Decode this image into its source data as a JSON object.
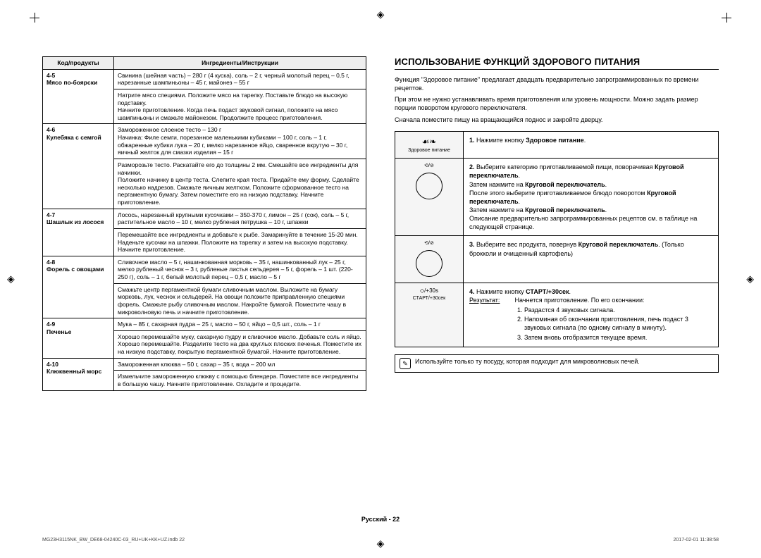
{
  "left": {
    "col1_header": "Код/продукты",
    "col2_header": "Ингредиенты/Инструкции",
    "rows": [
      {
        "code": "4-5\nМясо по-боярски",
        "ing": "Свинина (шейная часть) – 280 г (4 куска), соль – 2 г, черный молотый перец – 0,5 г, нарезанные шампиньоны – 45 г, майонез – 55 г",
        "instr": "Натрите мясо специями. Положите мясо на тарелку. Поставьте блюдо на высокую подставку.\nНачните приготовление. Когда печь подаст звуковой сигнал, положите на мясо шампиньоны и смажьте майонезом. Продолжите процесс приготовления."
      },
      {
        "code": "4-6\nКулебяка с семгой",
        "ing": "Замороженное слоеное тесто – 130 г\nНачинка: Филе семги, порезанное маленькими кубиками – 100 г, соль – 1 г, обжаренные кубики лука – 20 г, мелко нарезанное яйцо, сваренное вкрутую – 30 г, яичный желток для смазки изделия – 15 г",
        "instr": "Разморозьте тесто. Раскатайте его до толщины 2 мм. Смешайте все ингредиенты для начинки.\nПоложите начинку в центр теста. Слепите края теста. Придайте ему форму. Сделайте несколько надрезов. Смажьте яичным желтком. Положите сформованное тесто на пергаментную бумагу. Затем поместите его на низкую подставку. Начните приготовление."
      },
      {
        "code": "4-7\nШашлык из лосося",
        "ing": "Лосось, нарезанный крупными кусочками – 350-370 г, лимон – 25 г (сок), соль – 5 г, растительное масло – 10 г, мелко рубленая петрушка – 10 г, шпажки",
        "instr": "Перемешайте все ингредиенты и добавьте к рыбе. Замаринуйте в течение 15-20 мин. Наденьте кусочки на шпажки. Положите на тарелку и затем на высокую подставку. Начните приготовление."
      },
      {
        "code": "4-8\nФорель с овощами",
        "ing": "Сливочное масло – 5 г, нашинкованная морковь – 35 г, нашинкованный лук – 25 г, мелко рубленый чеснок – 3 г, рубленые листья сельдерея – 5 г, форель – 1 шт. (220-250 г), соль – 1 г, белый молотый перец – 0,5 г, масло – 5 г",
        "instr": "Смажьте центр пергаментной бумаги сливочным маслом. Выложите на бумагу морковь, лук, чеснок и сельдерей. На овощи положите приправленную специями форель. Смажьте рыбу сливочным маслом. Накройте бумагой. Поместите чашу в микроволновую печь и начните приготовление."
      },
      {
        "code": "4-9\nПеченье",
        "ing": "Мука – 85 г, сахарная пудра – 25 г, масло – 50 г, яйцо – 0,5 шт., соль – 1 г",
        "instr": "Хорошо перемешайте муку, сахарную пудру и сливочное масло. Добавьте соль и яйцо.\nХорошо перемешайте. Разделите тесто на два круглых плоских печенья. Поместите их на низкую подставку, покрытую пергаментной бумагой. Начните приготовление."
      },
      {
        "code": "4-10\nКлюквенный морс",
        "ing": "Замороженная клюква – 50 г, сахар – 35 г, вода – 200 мл",
        "instr": "Измельчите замороженную клюкву с помощью блендера. Поместите все ингредиенты в большую чашу. Начните приготовление. Охладите и процедите."
      }
    ]
  },
  "right": {
    "heading": "ИСПОЛЬЗОВАНИЕ ФУНКЦИЙ ЗДОРОВОГО ПИТАНИЯ",
    "p1": "Функция \"Здоровое питание\" предлагает двадцать предварительно запрограммированных по времени рецептов.",
    "p2": "При этом не нужно устанавливать время приготовления или уровень мощности. Можно задать размер порции поворотом кругового переключателя.",
    "p3": "Сначала поместите пищу на вращающийся поднос и закройте дверцу.",
    "step1_icon": "Здоровое питание",
    "step1": "Нажмите кнопку ",
    "step1b": "Здоровое питание",
    "step2a": "Выберите категорию приготавливаемой пищи, поворачивая ",
    "step2b": "Круговой переключатель",
    "step2c": "Затем нажмите на ",
    "step2d": "Круговой переключатель",
    "step2e": "После этого выберите приготавливаемое блюдо поворотом ",
    "step2f": "Круговой переключатель",
    "step2g": "Затем нажмите на ",
    "step2h": "Круговой переключатель",
    "step2i": "Описание предварительно запрограммированных рецептов см. в таблице на следующей странице.",
    "step3a": "Выберите вес продукта, повернув ",
    "step3b": "Круговой переключатель",
    "step3c": ". (Только брокколи и очищенный картофель)",
    "step4_icon": "СТАРТ/+30сек",
    "step4a": "Нажмите кнопку ",
    "step4b": "СТАРТ/+30сек",
    "step4_res_label": "Результат:",
    "step4_res": "Начнется приготовление. По его окончании:",
    "step4_li1": "Раздастся 4 звуковых сигнала.",
    "step4_li2": "Напоминая об окончании приготовления, печь подаст 3 звуковых сигнала (по одному сигналу в минуту).",
    "step4_li3": "Затем вновь отобразится текущее время.",
    "note": "Используйте только ту посуду, которая подходит для микроволновых печей."
  },
  "footer": "Русский - 22",
  "footleft": "MG23H3115NK_BW_DE68-04240C-03_RU+UK+KK+UZ.indb   22",
  "footright": "2017-02-01   11:38:58"
}
